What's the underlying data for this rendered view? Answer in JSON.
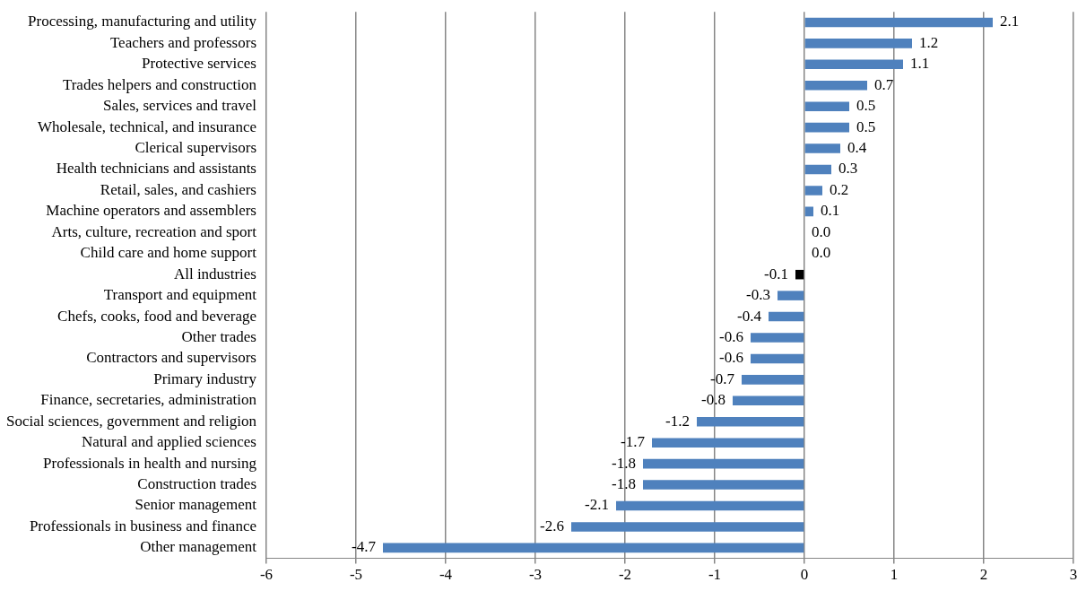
{
  "chart_data": {
    "type": "bar",
    "orientation": "horizontal",
    "categories": [
      "Processing, manufacturing and utility",
      "Teachers and professors",
      "Protective services",
      "Trades helpers and construction",
      "Sales, services and travel",
      "Wholesale, technical, and insurance",
      "Clerical supervisors",
      "Health technicians and assistants",
      "Retail, sales, and cashiers",
      "Machine operators and assemblers",
      "Arts, culture, recreation and sport",
      "Child care and home support",
      "All industries",
      "Transport and equipment",
      "Chefs, cooks, food and beverage",
      "Other trades",
      "Contractors and supervisors",
      "Primary industry",
      "Finance, secretaries, administration",
      "Social sciences, government and religion",
      "Natural and applied sciences",
      "Professionals in health and nursing",
      "Construction trades",
      "Senior management",
      "Professionals in business and finance",
      "Other management"
    ],
    "values": [
      2.1,
      1.2,
      1.1,
      0.7,
      0.5,
      0.5,
      0.4,
      0.3,
      0.2,
      0.1,
      0.0,
      0.0,
      -0.1,
      -0.3,
      -0.4,
      -0.6,
      -0.6,
      -0.7,
      -0.8,
      -1.2,
      -1.7,
      -1.8,
      -1.8,
      -2.1,
      -2.6,
      -4.7
    ],
    "colors": [
      "#4f81bd",
      "#4f81bd",
      "#4f81bd",
      "#4f81bd",
      "#4f81bd",
      "#4f81bd",
      "#4f81bd",
      "#4f81bd",
      "#4f81bd",
      "#4f81bd",
      "#4f81bd",
      "#4f81bd",
      "#000000",
      "#4f81bd",
      "#4f81bd",
      "#4f81bd",
      "#4f81bd",
      "#4f81bd",
      "#4f81bd",
      "#4f81bd",
      "#4f81bd",
      "#4f81bd",
      "#4f81bd",
      "#4f81bd",
      "#4f81bd",
      "#4f81bd"
    ],
    "xlim": [
      -6,
      3
    ],
    "xticks": [
      -6,
      -5,
      -4,
      -3,
      -2,
      -1,
      0,
      1,
      2,
      3
    ],
    "value_labels": [
      "2.1",
      "1.2",
      "1.1",
      "0.7",
      "0.5",
      "0.5",
      "0.4",
      "0.3",
      "0.2",
      "0.1",
      "0.0",
      "0.0",
      "-0.1",
      "-0.3",
      "-0.4",
      "-0.6",
      "-0.6",
      "-0.7",
      "-0.8",
      "-1.2",
      "-1.7",
      "-1.8",
      "-1.8",
      "-2.1",
      "-2.6",
      "-4.7"
    ],
    "grid": "x",
    "legend": false
  }
}
